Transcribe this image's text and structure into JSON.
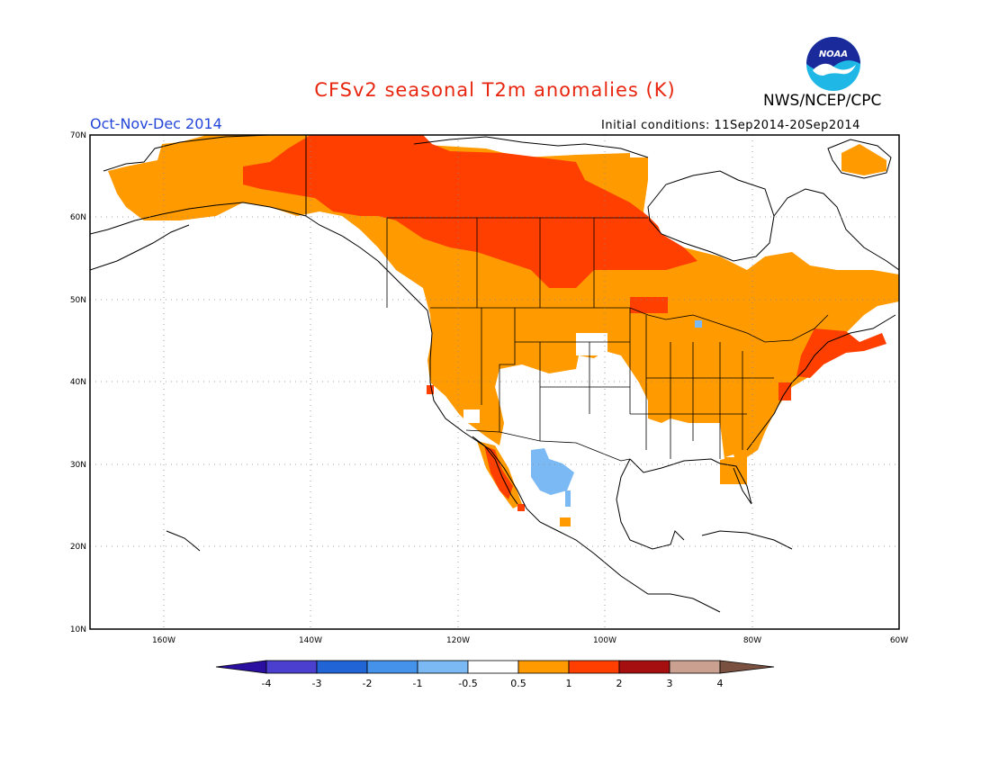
{
  "header": {
    "title": "CFSv2 seasonal T2m anomalies (K)",
    "period": "Oct-Nov-Dec 2014",
    "org": "NWS/NCEP/CPC",
    "init": "Initial conditions: 11Sep2014-20Sep2014",
    "logo_text": "NOAA"
  },
  "colors": {
    "title": "#e8250f",
    "period": "#2446d9",
    "neg4": "#2a0fa0",
    "neg3": "#4a3fcf",
    "neg2": "#2164d6",
    "neg1": "#4592ea",
    "neg05": "#7ab9f4",
    "neutral": "#ffffff",
    "pos05": "#ff9a00",
    "pos1": "#ff3f00",
    "pos2": "#a50f0f",
    "pos3": "#caa190",
    "pos4": "#7a5040"
  },
  "map": {
    "lat_labels": [
      "70N",
      "60N",
      "50N",
      "40N",
      "30N",
      "20N",
      "10N"
    ],
    "lon_labels": [
      "160W",
      "140W",
      "120W",
      "100W",
      "80W",
      "60W"
    ],
    "lon_range": [
      -170,
      -60
    ],
    "lat_range": [
      10,
      70
    ]
  },
  "colorbar": {
    "labels": [
      "-4",
      "-3",
      "-2",
      "-1",
      "-0.5",
      "0.5",
      "1",
      "2",
      "3",
      "4"
    ]
  }
}
